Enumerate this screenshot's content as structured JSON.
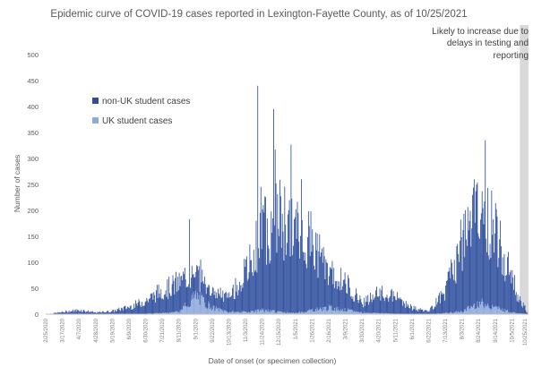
{
  "chart_data": {
    "type": "bar",
    "stacked": true,
    "title": "Epidemic curve of COVID-19 cases reported in Lexington-Fayette County, as of 10/25/2021",
    "xlabel": "Date of onset (or specimen collection)",
    "ylabel": "Number of cases",
    "ylim": [
      0,
      500
    ],
    "yticks": [
      0,
      50,
      100,
      150,
      200,
      250,
      300,
      350,
      400,
      450,
      500
    ],
    "grid": false,
    "legend_position": "left",
    "x_start": "2020-02-25",
    "x_end": "2021-10-25",
    "x_tick_labels": [
      "2/25/2020",
      "3/17/2020",
      "4/7/2020",
      "4/28/2020",
      "5/19/2020",
      "6/9/2020",
      "6/30/2020",
      "7/21/2020",
      "8/11/2020",
      "9/1/2020",
      "9/22/2020",
      "10/13/2020",
      "11/3/2020",
      "11/24/2020",
      "12/15/2020",
      "1/5/2021",
      "1/26/2021",
      "2/16/2021",
      "3/9/2021",
      "3/30/2021",
      "4/20/2021",
      "5/11/2021",
      "6/1/2021",
      "6/22/2021",
      "7/13/2021",
      "8/3/2021",
      "8/24/2021",
      "9/14/2021",
      "10/5/2021",
      "10/25/2021"
    ],
    "series_anchor_dates": [
      "2020-02-25",
      "2020-03-17",
      "2020-04-07",
      "2020-04-28",
      "2020-05-19",
      "2020-06-09",
      "2020-06-30",
      "2020-07-21",
      "2020-08-11",
      "2020-09-01",
      "2020-09-22",
      "2020-10-13",
      "2020-11-03",
      "2020-11-24",
      "2020-12-15",
      "2021-01-05",
      "2021-01-26",
      "2021-02-16",
      "2021-03-09",
      "2021-03-30",
      "2021-04-20",
      "2021-05-11",
      "2021-06-01",
      "2021-06-22",
      "2021-07-13",
      "2021-08-03",
      "2021-08-24",
      "2021-09-14",
      "2021-10-05",
      "2021-10-25"
    ],
    "series": [
      {
        "name": "non-UK student cases",
        "color": "#2f4f9e",
        "values": [
          0,
          4,
          8,
          3,
          6,
          14,
          25,
          45,
          55,
          50,
          30,
          28,
          75,
          150,
          185,
          160,
          130,
          70,
          50,
          20,
          38,
          32,
          12,
          5,
          45,
          130,
          185,
          155,
          60,
          0
        ]
      },
      {
        "name": "UK student cases",
        "color": "#8ea9db",
        "values": [
          0,
          0,
          0,
          0,
          0,
          0,
          1,
          2,
          5,
          35,
          12,
          4,
          4,
          8,
          4,
          2,
          8,
          12,
          8,
          3,
          2,
          1,
          0,
          0,
          2,
          5,
          22,
          12,
          3,
          0
        ]
      }
    ],
    "peak_annotations": [
      {
        "date": "2020-08-24",
        "total": 183
      },
      {
        "date": "2020-11-18",
        "total": 440
      },
      {
        "date": "2020-12-08",
        "total": 395
      },
      {
        "date": "2021-01-12",
        "total": 260
      },
      {
        "date": "2021-09-01",
        "total": 335
      }
    ],
    "shaded_region": {
      "start": "2021-10-15",
      "end": "2021-10-25",
      "color": "#d9d9d9",
      "note": "Likely to increase due to delays in testing and reporting"
    }
  },
  "note_lines": [
    "Likely to increase due to",
    "delays in testing and",
    "reporting"
  ]
}
